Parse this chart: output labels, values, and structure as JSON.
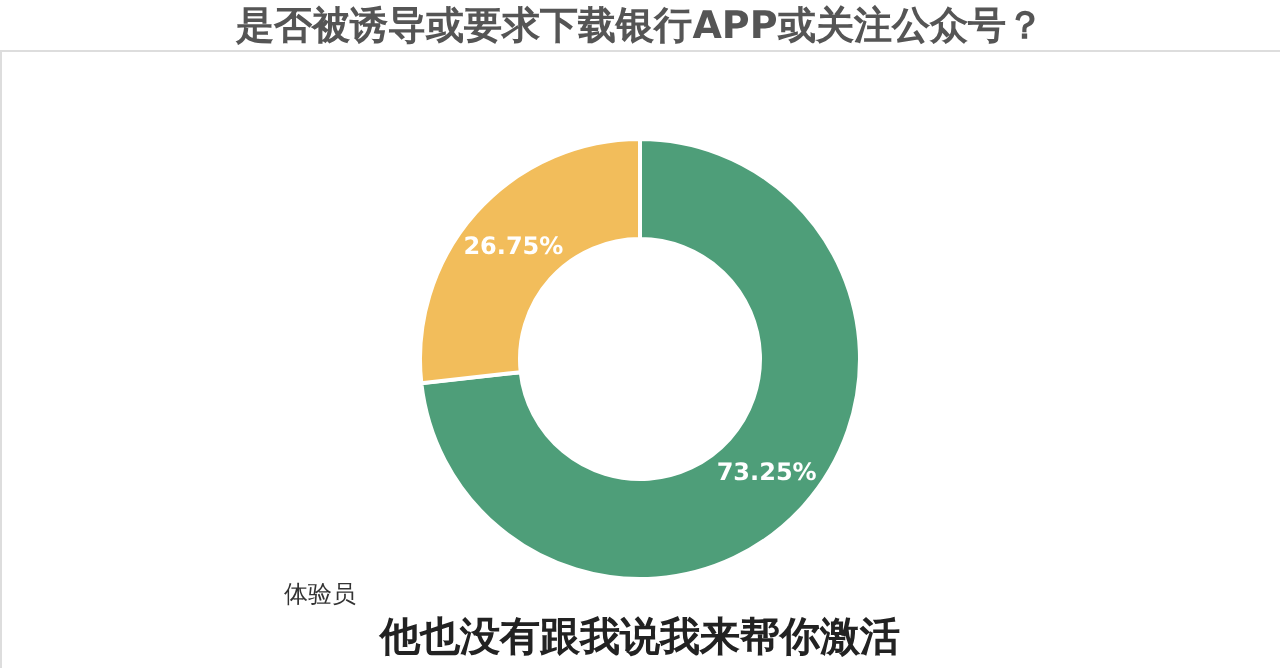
{
  "chart_data": {
    "type": "donut",
    "title": "是否被诱导或要求下载银行APP或关注公众号？",
    "categories": [
      null,
      null
    ],
    "values": [
      73.25,
      26.75
    ],
    "colors": [
      "#4e9e79",
      "#f2bd5b"
    ],
    "value_labels": [
      "73.25%",
      "26.75%"
    ],
    "legend": false,
    "annotations": [
      "体验员",
      "他也没有跟我说我来帮你激活"
    ]
  }
}
